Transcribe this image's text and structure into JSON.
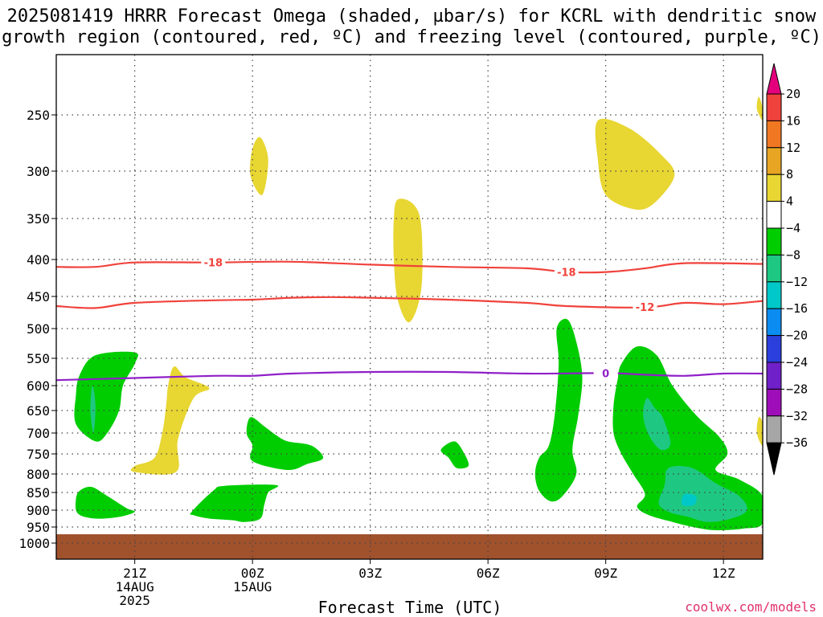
{
  "title_line1": "2025081419 HRRR Forecast Omega (shaded, µbar/s) for KCRL with dendritic snow",
  "title_line2": "growth region (contoured, red, ºC) and freezing level (contoured, purple, ºC)",
  "xlabel": "Forecast Time (UTC)",
  "credit": "coolwx.com/models",
  "chart_data": {
    "type": "heatmap",
    "y_axis": {
      "quantity": "pressure (mb)",
      "inverted": true,
      "ticks": [
        250,
        300,
        350,
        400,
        450,
        500,
        550,
        600,
        650,
        700,
        750,
        800,
        850,
        900,
        950,
        1000
      ],
      "range": [
        200,
        1030
      ]
    },
    "x_axis": {
      "quantity": "hours from 2025-08-14 19Z",
      "range": [
        0,
        18
      ],
      "ticks": [
        {
          "hour": 2,
          "lines": [
            "21Z",
            "14AUG",
            "2025"
          ]
        },
        {
          "hour": 5,
          "lines": [
            "00Z",
            "15AUG"
          ]
        },
        {
          "hour": 8,
          "lines": [
            "03Z"
          ]
        },
        {
          "hour": 11,
          "lines": [
            "06Z"
          ]
        },
        {
          "hour": 14,
          "lines": [
            "09Z"
          ]
        },
        {
          "hour": 17,
          "lines": [
            "12Z"
          ]
        }
      ]
    },
    "grid": true,
    "colorbar": {
      "label_values": [
        "20",
        "16",
        "12",
        "8",
        "4",
        "−4",
        "−8",
        "−12",
        "−16",
        "−20",
        "−24",
        "−28",
        "−32",
        "−36"
      ],
      "colors": [
        "#e4007c",
        "#f0423c",
        "#f07822",
        "#e8a524",
        "#e8d632",
        "#ffffff",
        "#00cd00",
        "#1ec882",
        "#00c8c8",
        "#0a8cf0",
        "#2b3fdc",
        "#7020c8",
        "#9e0eb8",
        "#a6a6a6",
        "#000000"
      ]
    },
    "contours": [
      {
        "label": "-18",
        "color": "#f0423c",
        "points": [
          [
            0,
            410
          ],
          [
            1,
            410
          ],
          [
            2,
            404
          ],
          [
            4,
            404
          ],
          [
            6,
            403
          ],
          [
            8,
            407
          ],
          [
            10,
            410
          ],
          [
            12,
            412
          ],
          [
            13,
            417
          ],
          [
            14,
            417
          ],
          [
            15,
            412
          ],
          [
            16,
            405
          ],
          [
            18,
            406
          ]
        ]
      },
      {
        "label": "-12",
        "color": "#f0423c",
        "points": [
          [
            0,
            465
          ],
          [
            1,
            468
          ],
          [
            2,
            460
          ],
          [
            4,
            456
          ],
          [
            5,
            455
          ],
          [
            6,
            452
          ],
          [
            7,
            451
          ],
          [
            8,
            452
          ],
          [
            10,
            455
          ],
          [
            12,
            460
          ],
          [
            13,
            465
          ],
          [
            15,
            467
          ],
          [
            16,
            460
          ],
          [
            17,
            462
          ],
          [
            18,
            457
          ]
        ]
      },
      {
        "label": "0",
        "color": "#9020c8",
        "points": [
          [
            0,
            590
          ],
          [
            2,
            586
          ],
          [
            4,
            582
          ],
          [
            5,
            582
          ],
          [
            6,
            578
          ],
          [
            8,
            575
          ],
          [
            10,
            575
          ],
          [
            12,
            578
          ],
          [
            14,
            577
          ],
          [
            15,
            580
          ],
          [
            16,
            582
          ],
          [
            17,
            578
          ],
          [
            18,
            578
          ]
        ]
      }
    ],
    "contour_label_positions": [
      {
        "label": "-18",
        "x": 4,
        "y": 404
      },
      {
        "label": "-18",
        "x": 13,
        "y": 417
      },
      {
        "label": "-12",
        "x": 15,
        "y": 466
      },
      {
        "label": "0",
        "x": 14,
        "y": 577
      }
    ],
    "shaded_regions": [
      {
        "color": "#e8d632",
        "points": [
          [
            5.2,
            270
          ],
          [
            5.4,
            290
          ],
          [
            5.25,
            325
          ],
          [
            4.95,
            305
          ],
          [
            5.0,
            280
          ]
        ]
      },
      {
        "color": "#e8d632",
        "points": [
          [
            8.7,
            330
          ],
          [
            9.1,
            335
          ],
          [
            9.3,
            360
          ],
          [
            9.3,
            440
          ],
          [
            9.0,
            490
          ],
          [
            8.7,
            455
          ],
          [
            8.6,
            400
          ],
          [
            8.6,
            350
          ]
        ]
      },
      {
        "color": "#e8d632",
        "points": [
          [
            13.8,
            255
          ],
          [
            14.6,
            262
          ],
          [
            15.4,
            285
          ],
          [
            15.75,
            305
          ],
          [
            15.2,
            335
          ],
          [
            14.7,
            340
          ],
          [
            14.0,
            325
          ],
          [
            13.8,
            290
          ]
        ]
      },
      {
        "color": "#e8d632",
        "points": [
          [
            17.9,
            235
          ],
          [
            18,
            245
          ],
          [
            18,
            255
          ],
          [
            17.85,
            245
          ]
        ]
      },
      {
        "color": "#e8d632",
        "points": [
          [
            3.0,
            565
          ],
          [
            3.3,
            585
          ],
          [
            3.9,
            605
          ],
          [
            3.5,
            625
          ],
          [
            3.1,
            715
          ],
          [
            3.05,
            795
          ],
          [
            2.0,
            795
          ],
          [
            2.0,
            780
          ],
          [
            2.5,
            760
          ],
          [
            2.7,
            700
          ],
          [
            2.8,
            640
          ],
          [
            2.85,
            600
          ]
        ]
      },
      {
        "color": "#e8d632",
        "points": [
          [
            17.9,
            665
          ],
          [
            18,
            680
          ],
          [
            18,
            730
          ],
          [
            17.85,
            700
          ]
        ]
      },
      {
        "color": "#00cd00",
        "points": [
          [
            1.0,
            545
          ],
          [
            2.0,
            540
          ],
          [
            2.0,
            560
          ],
          [
            1.7,
            600
          ],
          [
            1.6,
            650
          ],
          [
            1.3,
            700
          ],
          [
            1.0,
            720
          ],
          [
            0.5,
            680
          ],
          [
            0.5,
            620
          ],
          [
            0.6,
            580
          ]
        ]
      },
      {
        "color": "#00cd00",
        "points": [
          [
            0.6,
            845
          ],
          [
            0.9,
            835
          ],
          [
            1.3,
            860
          ],
          [
            1.8,
            895
          ],
          [
            2.0,
            905
          ],
          [
            1.6,
            920
          ],
          [
            1.0,
            925
          ],
          [
            0.55,
            910
          ],
          [
            0.5,
            870
          ]
        ]
      },
      {
        "color": "#00cd00",
        "points": [
          [
            3.45,
            905
          ],
          [
            4.0,
            845
          ],
          [
            4.3,
            832
          ],
          [
            5.6,
            830
          ],
          [
            5.4,
            850
          ],
          [
            5.3,
            885
          ],
          [
            5.2,
            925
          ],
          [
            4.8,
            935
          ],
          [
            4.5,
            930
          ],
          [
            3.9,
            925
          ],
          [
            3.5,
            915
          ]
        ]
      },
      {
        "color": "#00cd00",
        "points": [
          [
            4.95,
            665
          ],
          [
            5.3,
            685
          ],
          [
            5.6,
            705
          ],
          [
            5.9,
            720
          ],
          [
            6.5,
            730
          ],
          [
            6.8,
            760
          ],
          [
            6.4,
            775
          ],
          [
            5.9,
            790
          ],
          [
            5.0,
            768
          ],
          [
            5.0,
            730
          ],
          [
            4.85,
            700
          ]
        ]
      },
      {
        "color": "#00cd00",
        "points": [
          [
            9.8,
            740
          ],
          [
            10.15,
            720
          ],
          [
            10.4,
            750
          ],
          [
            10.5,
            780
          ],
          [
            10.2,
            785
          ],
          [
            10.0,
            760
          ]
        ]
      },
      {
        "color": "#00cd00",
        "points": [
          [
            13.0,
            485
          ],
          [
            13.2,
            510
          ],
          [
            13.4,
            580
          ],
          [
            13.3,
            660
          ],
          [
            13.15,
            740
          ],
          [
            13.25,
            800
          ],
          [
            12.9,
            860
          ],
          [
            12.6,
            875
          ],
          [
            12.3,
            845
          ],
          [
            12.2,
            800
          ],
          [
            12.3,
            760
          ],
          [
            12.55,
            730
          ],
          [
            12.7,
            660
          ],
          [
            12.8,
            560
          ],
          [
            12.75,
            500
          ]
        ]
      },
      {
        "color": "#00cd00",
        "points": [
          [
            14.4,
            560
          ],
          [
            14.8,
            530
          ],
          [
            15.3,
            545
          ],
          [
            15.7,
            600
          ],
          [
            16.3,
            660
          ],
          [
            16.9,
            710
          ],
          [
            17.1,
            750
          ],
          [
            16.8,
            790
          ],
          [
            17.4,
            815
          ],
          [
            18.0,
            860
          ],
          [
            18.0,
            940
          ],
          [
            17.5,
            955
          ],
          [
            16.8,
            960
          ],
          [
            16.3,
            952
          ],
          [
            15.7,
            935
          ],
          [
            15.1,
            915
          ],
          [
            14.8,
            890
          ],
          [
            15.0,
            855
          ],
          [
            14.7,
            800
          ],
          [
            14.4,
            750
          ],
          [
            14.2,
            700
          ],
          [
            14.2,
            640
          ],
          [
            14.3,
            590
          ]
        ]
      },
      {
        "color": "#1ec882",
        "points": [
          [
            0.92,
            600
          ],
          [
            1.0,
            640
          ],
          [
            0.95,
            700
          ],
          [
            0.87,
            650
          ]
        ]
      },
      {
        "color": "#1ec882",
        "points": [
          [
            15.05,
            625
          ],
          [
            15.25,
            645
          ],
          [
            15.45,
            665
          ],
          [
            15.65,
            725
          ],
          [
            15.4,
            740
          ],
          [
            15.1,
            705
          ],
          [
            14.95,
            660
          ]
        ]
      },
      {
        "color": "#1ec882",
        "points": [
          [
            15.6,
            785
          ],
          [
            16.2,
            785
          ],
          [
            16.8,
            825
          ],
          [
            17.4,
            860
          ],
          [
            17.6,
            900
          ],
          [
            17.2,
            925
          ],
          [
            16.6,
            935
          ],
          [
            16.1,
            920
          ],
          [
            15.6,
            905
          ],
          [
            15.35,
            880
          ],
          [
            15.5,
            830
          ]
        ]
      },
      {
        "color": "#00c8c8",
        "points": [
          [
            16.0,
            855
          ],
          [
            16.3,
            860
          ],
          [
            16.25,
            885
          ],
          [
            15.95,
            885
          ]
        ]
      }
    ]
  }
}
